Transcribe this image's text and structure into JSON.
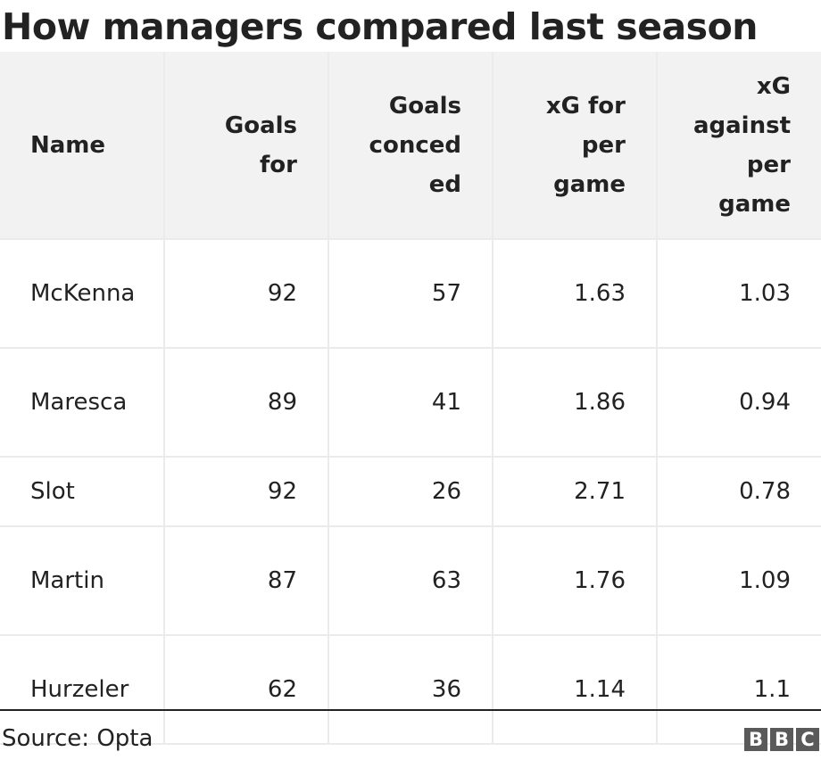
{
  "title": "How managers compared last season",
  "chart_data": {
    "type": "table",
    "columns": [
      "Name",
      "Goals for",
      "Goals conceded",
      "xG for per game",
      "xG against per game"
    ],
    "header_lines": [
      [
        "Name"
      ],
      [
        "Goals",
        "for"
      ],
      [
        "Goals",
        "conced",
        "ed"
      ],
      [
        "xG for",
        "per",
        "game"
      ],
      [
        "xG",
        "against",
        "per",
        "game"
      ]
    ],
    "rows": [
      {
        "name": "McKenna",
        "goals_for": "92",
        "goals_conceded": "57",
        "xg_for": "1.63",
        "xg_against": "1.03"
      },
      {
        "name": "Maresca",
        "goals_for": "89",
        "goals_conceded": "41",
        "xg_for": "1.86",
        "xg_against": "0.94"
      },
      {
        "name": "Slot",
        "goals_for": "92",
        "goals_conceded": "26",
        "xg_for": "2.71",
        "xg_against": "0.78"
      },
      {
        "name": "Martin",
        "goals_for": "87",
        "goals_conceded": "63",
        "xg_for": "1.76",
        "xg_against": "1.09"
      },
      {
        "name": "Hurzeler",
        "goals_for": "62",
        "goals_conceded": "36",
        "xg_for": "1.14",
        "xg_against": "1.1"
      }
    ]
  },
  "source": "Source: Opta",
  "logo": [
    "B",
    "B",
    "C"
  ]
}
